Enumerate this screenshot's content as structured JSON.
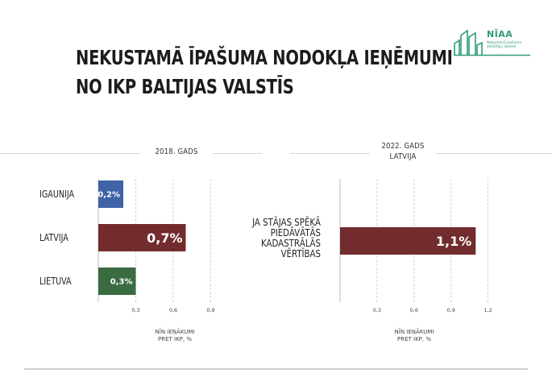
{
  "title_lines": [
    "NEKUSTAMĀ ĪPAŠUMA NODOKĻA IEŅĒMUMI",
    "NO IKP BALTIJAS VALSTĪS"
  ],
  "logo": {
    "name": "NĪAA",
    "subtitle": "Nekustamā īpašuma attīstītāju alianse"
  },
  "colors": {
    "estonia": "#3f63a6",
    "latvia": "#732c2e",
    "lithuania": "#3a6b41",
    "brand": "#2e9a7a"
  },
  "left_panel": {
    "header": "2018. GADS",
    "axis_note_line1": "NĪN IEŅĀKUMI",
    "axis_note_line2": "PRET IKP, %"
  },
  "right_panel": {
    "header_line1": "2022. GADS",
    "header_line2": "LATVIJA",
    "axis_note_line1": "NĪN IEŅĀKUMI",
    "axis_note_line2": "PRET IKP, %"
  },
  "chart_data": [
    {
      "type": "bar",
      "orientation": "horizontal",
      "title": "2018. GADS",
      "categories": [
        "IGAUNIJA",
        "LATVIJA",
        "LIETUVA"
      ],
      "values": [
        0.2,
        0.7,
        0.3
      ],
      "value_labels": [
        "0,2%",
        "0,7%",
        "0,3%"
      ],
      "colors": [
        "#3f63a6",
        "#732c2e",
        "#3a6b41"
      ],
      "xlabel": "NĪN IEŅĀKUMI PRET IKP, %",
      "xticks": [
        "0,3",
        "0,6",
        "0,9"
      ],
      "xtick_values": [
        0.3,
        0.6,
        0.9
      ],
      "xlim": [
        0,
        1.0
      ],
      "grid": "vertical dashed"
    },
    {
      "type": "bar",
      "orientation": "horizontal",
      "title": "2022. GADS LATVIJA",
      "categories": [
        "JA STĀJAS SPĒKĀ PIEDĀVĀTĀS KADASTRĀLĀS VĒRTĪBAS"
      ],
      "category_lines": [
        "JA STĀJAS SPĒKĀ",
        "PIEDĀVĀTĀS",
        "KADASTRĀLĀS",
        "VĒRTĪBAS"
      ],
      "values": [
        1.1
      ],
      "value_labels": [
        "1,1%"
      ],
      "colors": [
        "#732c2e"
      ],
      "xlabel": "NĪN IEŅĀKUMI PRET IKP, %",
      "xticks": [
        "0,3",
        "0,6",
        "0,9",
        "1,2"
      ],
      "xtick_values": [
        0.3,
        0.6,
        0.9,
        1.2
      ],
      "xlim": [
        0,
        1.3
      ],
      "grid": "vertical dashed"
    }
  ]
}
